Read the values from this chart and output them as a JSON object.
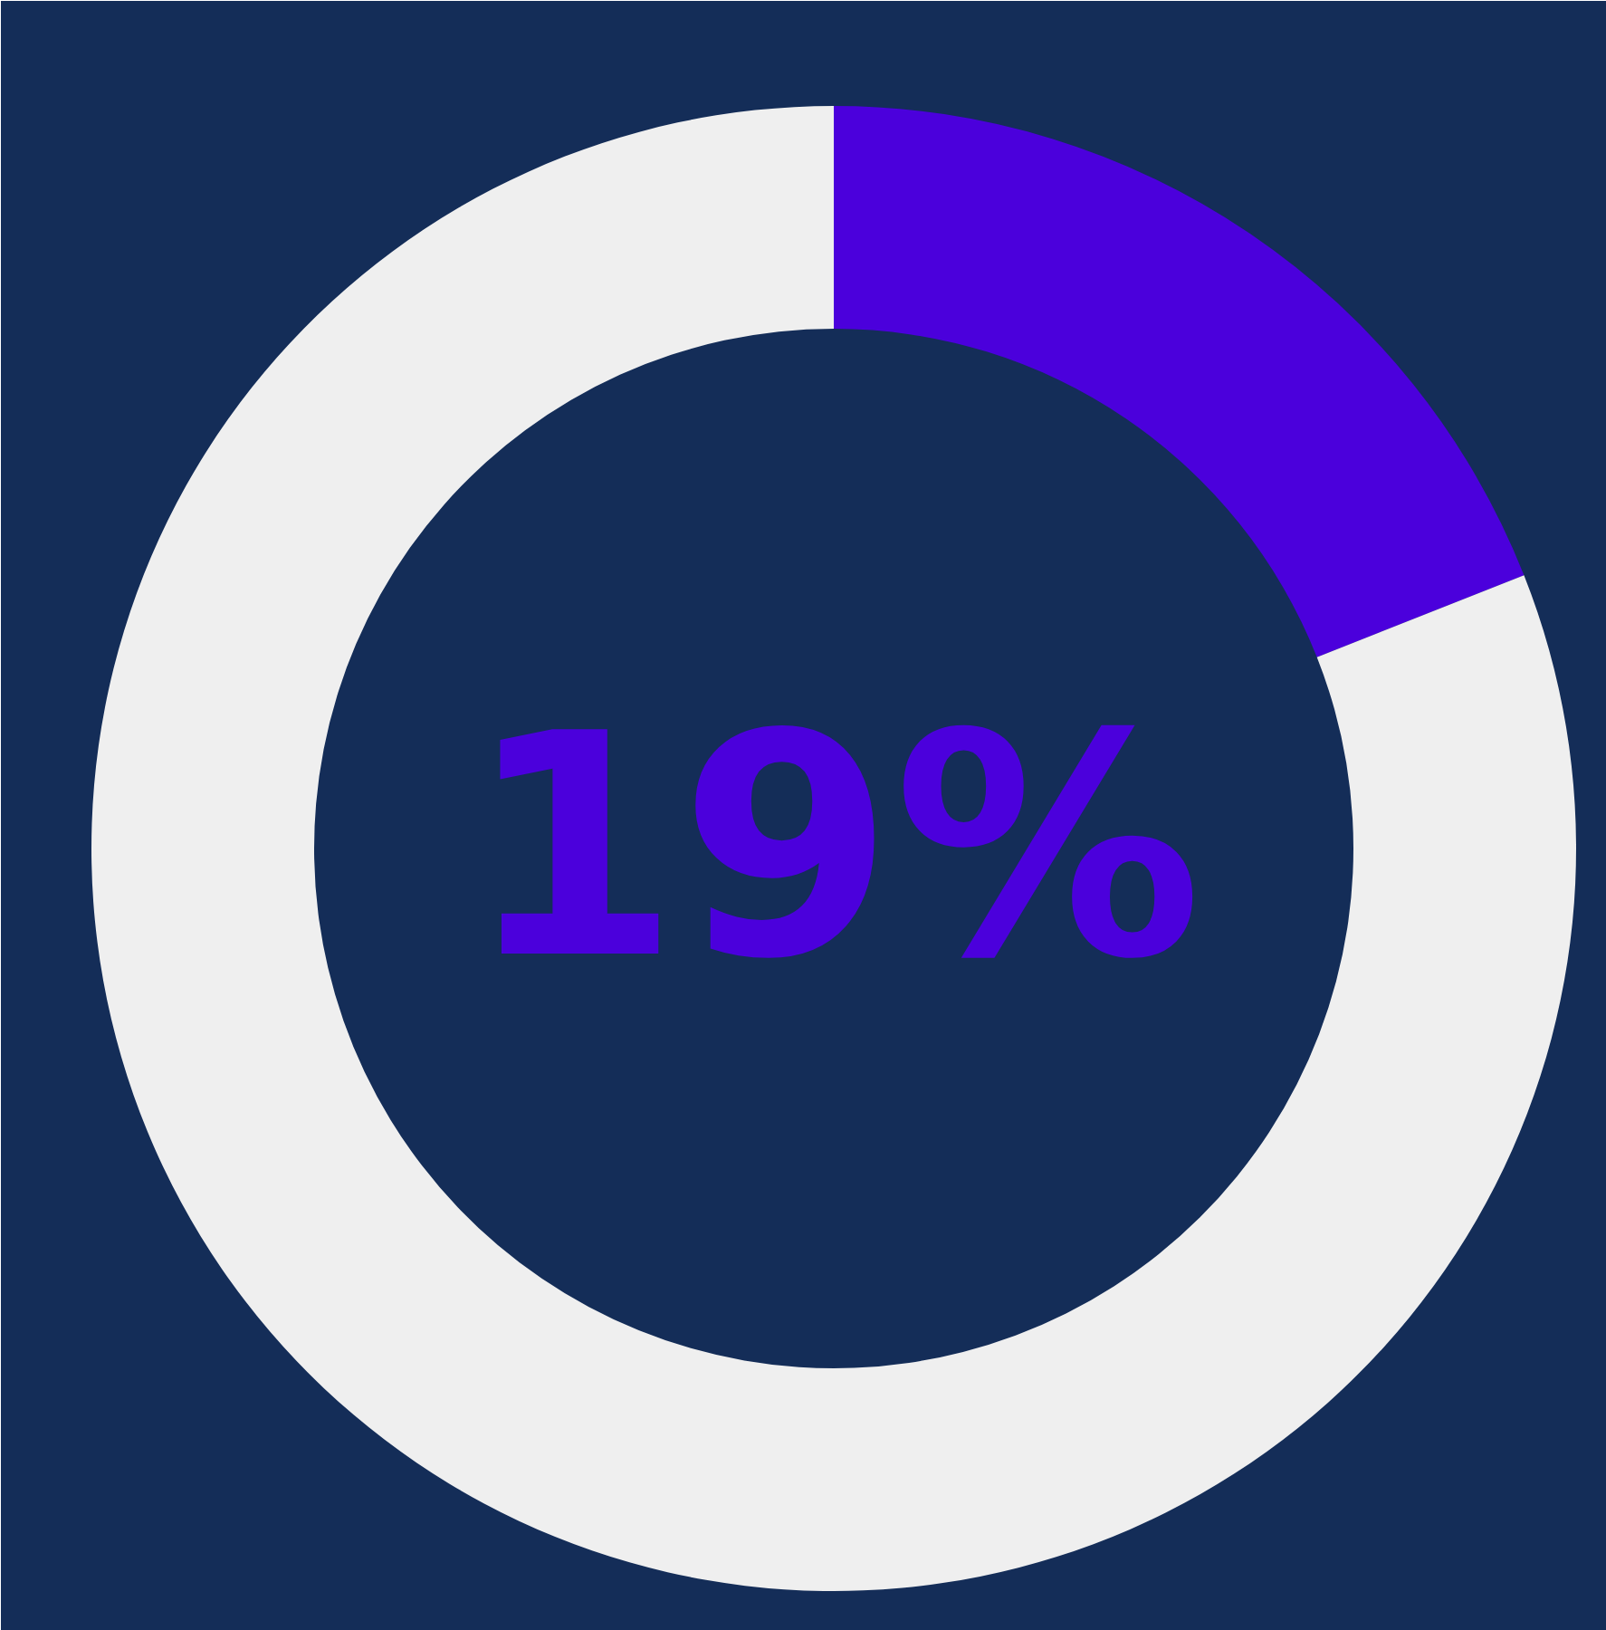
{
  "chart_data": {
    "type": "donut",
    "categories": [
      null,
      null
    ],
    "values": [
      19,
      81
    ],
    "colors": [
      "#4b00dc",
      "#efefef"
    ],
    "annotations": [
      "19%"
    ]
  }
}
